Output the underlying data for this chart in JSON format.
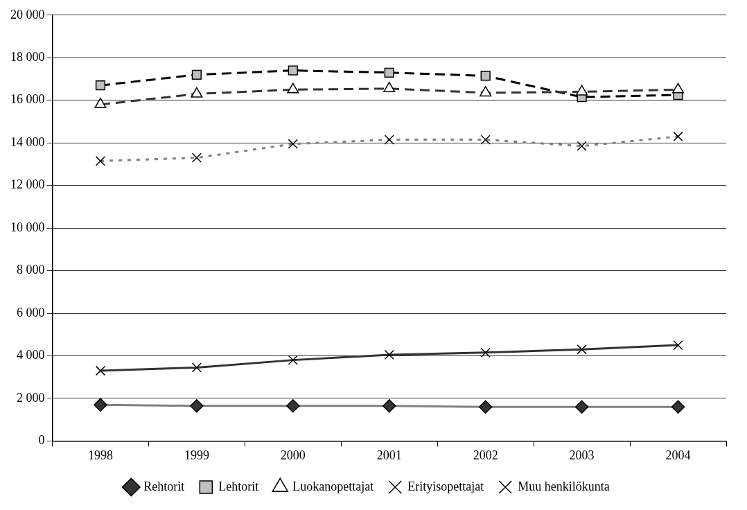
{
  "chart_data": {
    "type": "line",
    "categories": [
      "1998",
      "1999",
      "2000",
      "2001",
      "2002",
      "2003",
      "2004"
    ],
    "series": [
      {
        "name": "Rehtorit",
        "color": "#808080",
        "marker": "diamond",
        "line_style": "solid",
        "values": [
          1700,
          1650,
          1650,
          1650,
          1600,
          1600,
          1600
        ]
      },
      {
        "name": "Lehtorit",
        "color": "#000000",
        "marker": "square",
        "line_style": "dashed",
        "values": [
          16700,
          17200,
          17400,
          17300,
          17150,
          16150,
          16250
        ]
      },
      {
        "name": "Luokanopettajat",
        "color": "#333333",
        "marker": "triangle",
        "line_style": "dashed",
        "values": [
          15800,
          16300,
          16500,
          16550,
          16350,
          16400,
          16500
        ]
      },
      {
        "name": "Erityisopettajat",
        "color": "#333333",
        "marker": "cross",
        "line_style": "solid",
        "values": [
          3300,
          3450,
          3800,
          4050,
          4150,
          4300,
          4500
        ]
      },
      {
        "name": "Muu henkilökunta",
        "color": "#808080",
        "marker": "cross",
        "line_style": "dotted",
        "values": [
          13150,
          13300,
          13950,
          14150,
          14150,
          13850,
          14300
        ]
      }
    ],
    "ylim": [
      0,
      20000
    ],
    "yticks": [
      {
        "value": 0,
        "label": "0"
      },
      {
        "value": 2000,
        "label": "2 000"
      },
      {
        "value": 4000,
        "label": "4 000"
      },
      {
        "value": 6000,
        "label": "6 000"
      },
      {
        "value": 8000,
        "label": "8 000"
      },
      {
        "value": 10000,
        "label": "10 000"
      },
      {
        "value": 12000,
        "label": "12 000"
      },
      {
        "value": 14000,
        "label": "14 000"
      },
      {
        "value": 16000,
        "label": "16 000"
      },
      {
        "value": 18000,
        "label": "18 000"
      },
      {
        "value": 20000,
        "label": "20 000"
      }
    ],
    "grid": "y",
    "legend": "bottom"
  }
}
